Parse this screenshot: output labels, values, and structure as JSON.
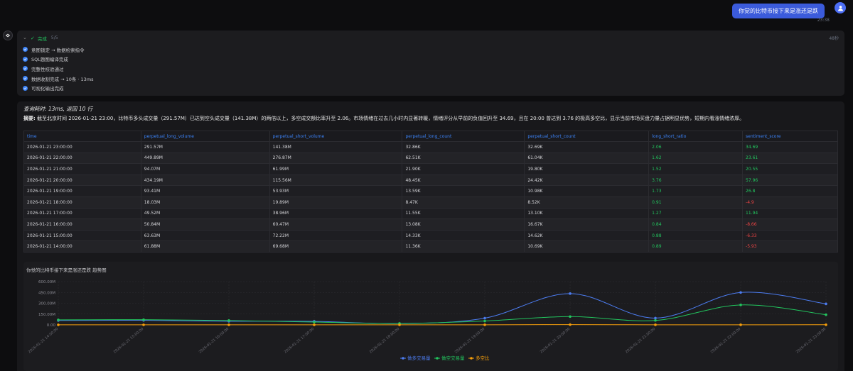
{
  "user": {
    "message": "你觉的比特币接下来是涨还是跌",
    "time": "23:38"
  },
  "steps": {
    "status": "完成",
    "count": "5/5",
    "elapsed": "48秒",
    "items": [
      "意图锁定 → 数据检索指令",
      "SQL题图编译完成",
      "完整性校验通过",
      "数据收割完成 → 10条 · 13ms",
      "可视化输出完成"
    ]
  },
  "result": {
    "query_time": "查询耗时: 13ms, 返回 10 行",
    "summary_label": "摘要:",
    "summary_text": "截至北京时间 2026-01-21 23:00，比特币多头成交量（291.57M）已达到空头成交量（141.38M）的两倍以上，多空成交额比率升至 2.06。市场情绪在过去几小时内显著转暖，情绪评分从早前的负值回升至 34.69，且在 20:00 曾达到 3.76 的极高多空比，显示当前市场买盘力量占据明显优势，短期内看涨情绪浓厚。"
  },
  "table": {
    "columns": [
      "time",
      "perpetual_long_volume",
      "perpetual_short_volume",
      "perpetual_long_count",
      "perpetual_short_count",
      "long_short_ratio",
      "sentiment_score"
    ],
    "rows": [
      [
        "2026-01-21 23:00:00",
        "291.57M",
        "141.38M",
        "32.86K",
        "32.69K",
        "2.06",
        "34.69"
      ],
      [
        "2026-01-21 22:00:00",
        "449.89M",
        "276.87M",
        "62.51K",
        "61.04K",
        "1.62",
        "23.61"
      ],
      [
        "2026-01-21 21:00:00",
        "94.07M",
        "61.99M",
        "21.90K",
        "19.80K",
        "1.52",
        "20.55"
      ],
      [
        "2026-01-21 20:00:00",
        "434.19M",
        "115.56M",
        "48.45K",
        "24.42K",
        "3.76",
        "57.96"
      ],
      [
        "2026-01-21 19:00:00",
        "93.41M",
        "53.93M",
        "13.59K",
        "10.98K",
        "1.73",
        "26.8"
      ],
      [
        "2026-01-21 18:00:00",
        "18.03M",
        "19.89M",
        "8.47K",
        "8.52K",
        "0.91",
        "-4.9"
      ],
      [
        "2026-01-21 17:00:00",
        "49.52M",
        "38.96M",
        "11.55K",
        "13.10K",
        "1.27",
        "11.94"
      ],
      [
        "2026-01-21 16:00:00",
        "50.84M",
        "60.47M",
        "13.08K",
        "16.67K",
        "0.84",
        "-8.66"
      ],
      [
        "2026-01-21 15:00:00",
        "63.63M",
        "72.22M",
        "14.33K",
        "14.62K",
        "0.88",
        "-6.33"
      ],
      [
        "2026-01-21 14:00:00",
        "61.88M",
        "69.68M",
        "11.36K",
        "10.69K",
        "0.89",
        "-5.93"
      ]
    ]
  },
  "chart_data": {
    "type": "line",
    "title": "你觉的比特币接下来是涨还是跌 趋势图",
    "x": [
      "2026-01-21 14:00:00",
      "2026-01-21 15:00:00",
      "2026-01-21 16:00:00",
      "2026-01-21 17:00:00",
      "2026-01-21 18:00:00",
      "2026-01-21 19:00:00",
      "2026-01-21 20:00:00",
      "2026-01-21 21:00:00",
      "2026-01-21 22:00:00",
      "2026-01-21 23:00:00"
    ],
    "yticks": [
      "600.00M",
      "450.00M",
      "300.00M",
      "150.00M",
      "0.00"
    ],
    "ylim": [
      0,
      600
    ],
    "series": [
      {
        "name": "做多交易量",
        "color": "#4c7cf0",
        "values": [
          61.88,
          63.63,
          50.84,
          49.52,
          18.03,
          93.41,
          434.19,
          94.07,
          449.89,
          291.57
        ]
      },
      {
        "name": "做空交易量",
        "color": "#22c55e",
        "values": [
          69.68,
          72.22,
          60.47,
          38.96,
          19.89,
          53.93,
          115.56,
          61.99,
          276.87,
          141.38
        ]
      },
      {
        "name": "多空比",
        "color": "#f59e0b",
        "values": [
          0.89,
          0.88,
          0.84,
          1.27,
          0.91,
          1.73,
          3.76,
          1.52,
          1.62,
          2.06
        ]
      }
    ],
    "legend_position": "bottom",
    "grid": true
  }
}
